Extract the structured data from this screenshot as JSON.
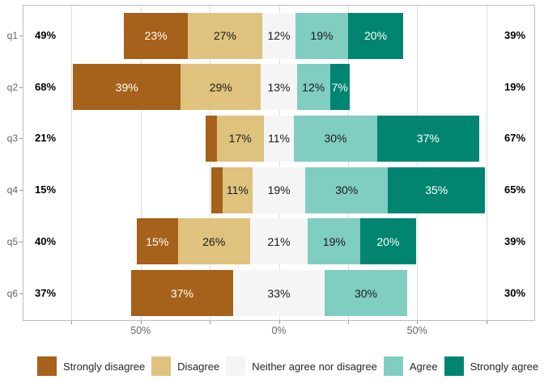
{
  "chart_data": {
    "type": "bar",
    "variant": "diverging_stacked_likert",
    "title": "",
    "categories": [
      "Strongly disagree",
      "Disagree",
      "Neither agree nor disagree",
      "Agree",
      "Strongly agree"
    ],
    "colors": [
      "#A6611A",
      "#DFC27D",
      "#F5F5F5",
      "#80CDC1",
      "#018571"
    ],
    "label_colors": [
      "#FFFFFF",
      "#1A1A1A",
      "#1A1A1A",
      "#1A1A1A",
      "#FFFFFF"
    ],
    "neutral_split": true,
    "xlim": [
      -92.7,
      92.7
    ],
    "grid": true,
    "gridline_values": [
      -75,
      -50,
      -25,
      0,
      25,
      50,
      75
    ],
    "x_ticks": [
      {
        "label": "50%",
        "value": -50
      },
      {
        "label": "0%",
        "value": 0
      },
      {
        "label": "50%",
        "value": 50
      }
    ],
    "legend_position": "bottom",
    "rows": [
      {
        "question": "q1",
        "left_total": "49%",
        "right_total": "39%",
        "values": [
          23,
          27,
          12,
          19,
          20
        ],
        "labels": [
          "23%",
          "27%",
          "12%",
          "19%",
          "20%"
        ]
      },
      {
        "question": "q2",
        "left_total": "68%",
        "right_total": "19%",
        "values": [
          39,
          29,
          13,
          12,
          7
        ],
        "labels": [
          "39%",
          "29%",
          "13%",
          "12%",
          "7%"
        ]
      },
      {
        "question": "q3",
        "left_total": "21%",
        "right_total": "67%",
        "values": [
          4,
          17,
          11,
          30,
          37
        ],
        "labels": [
          "",
          "17%",
          "11%",
          "30%",
          "37%"
        ]
      },
      {
        "question": "q4",
        "left_total": "15%",
        "right_total": "65%",
        "values": [
          4,
          11,
          19,
          30,
          35
        ],
        "labels": [
          "",
          "11%",
          "19%",
          "30%",
          "35%"
        ]
      },
      {
        "question": "q5",
        "left_total": "40%",
        "right_total": "39%",
        "values": [
          15,
          26,
          21,
          19,
          20
        ],
        "labels": [
          "15%",
          "26%",
          "21%",
          "19%",
          "20%"
        ]
      },
      {
        "question": "q6",
        "left_total": "37%",
        "right_total": "30%",
        "values": [
          37,
          0,
          33,
          30,
          0
        ],
        "labels": [
          "37%",
          "",
          "33%",
          "30%",
          ""
        ]
      }
    ]
  }
}
